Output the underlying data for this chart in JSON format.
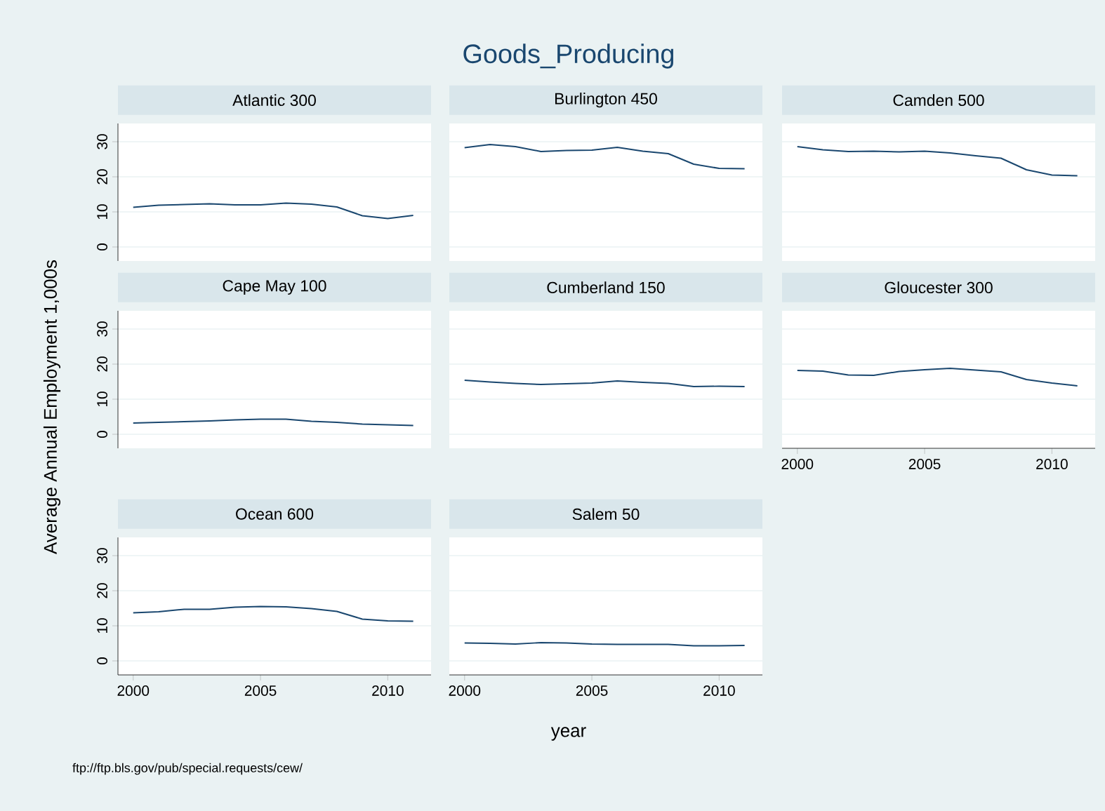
{
  "chart_data": [
    {
      "type": "other",
      "title": "Goods_Producing",
      "xlabel": "year",
      "ylabel": "Average Annual Employment 1,000s",
      "annotations": [
        "ftp://ftp.bls.gov/pub/special.requests/cew/"
      ]
    },
    {
      "type": "line",
      "title": "Atlantic 300",
      "x": [
        2000,
        2001,
        2002,
        2003,
        2004,
        2005,
        2006,
        2007,
        2008,
        2009,
        2010,
        2011
      ],
      "values": [
        11.3,
        11.9,
        12.1,
        12.3,
        12.0,
        12.0,
        12.5,
        12.2,
        11.4,
        8.9,
        8.1,
        9.0
      ],
      "color": "#1a476f",
      "xlim": [
        1999.4,
        2011.7
      ],
      "ylim": [
        -4,
        35.2
      ],
      "xticks": [
        2000,
        2005,
        2010
      ],
      "yticks": [
        0,
        10,
        20,
        30
      ],
      "grid": "y",
      "tick_labels": "y"
    },
    {
      "type": "line",
      "title": "Burlington 450",
      "x": [
        2000,
        2001,
        2002,
        2003,
        2004,
        2005,
        2006,
        2007,
        2008,
        2009,
        2010,
        2011
      ],
      "values": [
        28.3,
        29.2,
        28.6,
        27.2,
        27.5,
        27.6,
        28.4,
        27.3,
        26.6,
        23.6,
        22.4,
        22.3
      ],
      "color": "#1a476f",
      "xlim": [
        1999.4,
        2011.7
      ],
      "ylim": [
        -4,
        35.2
      ],
      "xticks": [
        2000,
        2005,
        2010
      ],
      "yticks": [
        0,
        10,
        20,
        30
      ],
      "grid": "y",
      "tick_labels": false
    },
    {
      "type": "line",
      "title": "Camden 500",
      "x": [
        2000,
        2001,
        2002,
        2003,
        2004,
        2005,
        2006,
        2007,
        2008,
        2009,
        2010,
        2011
      ],
      "values": [
        28.6,
        27.7,
        27.2,
        27.3,
        27.1,
        27.3,
        26.8,
        26.0,
        25.3,
        22.0,
        20.5,
        20.3
      ],
      "color": "#1a476f",
      "xlim": [
        1999.4,
        2011.7
      ],
      "ylim": [
        -4,
        35.2
      ],
      "xticks": [
        2000,
        2005,
        2010
      ],
      "yticks": [
        0,
        10,
        20,
        30
      ],
      "grid": "y",
      "tick_labels": false
    },
    {
      "type": "line",
      "title": "Cape May 100",
      "x": [
        2000,
        2001,
        2002,
        2003,
        2004,
        2005,
        2006,
        2007,
        2008,
        2009,
        2010,
        2011
      ],
      "values": [
        3.2,
        3.4,
        3.6,
        3.8,
        4.1,
        4.3,
        4.3,
        3.7,
        3.4,
        2.9,
        2.7,
        2.5
      ],
      "color": "#1a476f",
      "xlim": [
        1999.4,
        2011.7
      ],
      "ylim": [
        -4,
        35.2
      ],
      "xticks": [
        2000,
        2005,
        2010
      ],
      "yticks": [
        0,
        10,
        20,
        30
      ],
      "grid": "y",
      "tick_labels": "y"
    },
    {
      "type": "line",
      "title": "Cumberland 150",
      "x": [
        2000,
        2001,
        2002,
        2003,
        2004,
        2005,
        2006,
        2007,
        2008,
        2009,
        2010,
        2011
      ],
      "values": [
        15.4,
        14.9,
        14.5,
        14.2,
        14.4,
        14.6,
        15.2,
        14.8,
        14.5,
        13.6,
        13.7,
        13.6
      ],
      "color": "#1a476f",
      "xlim": [
        1999.4,
        2011.7
      ],
      "ylim": [
        -4,
        35.2
      ],
      "xticks": [
        2000,
        2005,
        2010
      ],
      "yticks": [
        0,
        10,
        20,
        30
      ],
      "grid": "y",
      "tick_labels": false
    },
    {
      "type": "line",
      "title": "Gloucester 300",
      "x": [
        2000,
        2001,
        2002,
        2003,
        2004,
        2005,
        2006,
        2007,
        2008,
        2009,
        2010,
        2011
      ],
      "values": [
        18.2,
        18.0,
        16.9,
        16.8,
        17.9,
        18.4,
        18.8,
        18.3,
        17.8,
        15.6,
        14.6,
        13.8
      ],
      "color": "#1a476f",
      "xlim": [
        1999.4,
        2011.7
      ],
      "ylim": [
        -4,
        35.2
      ],
      "xticks": [
        2000,
        2005,
        2010
      ],
      "yticks": [
        0,
        10,
        20,
        30
      ],
      "grid": "y",
      "tick_labels": "x"
    },
    {
      "type": "line",
      "title": "Ocean 600",
      "x": [
        2000,
        2001,
        2002,
        2003,
        2004,
        2005,
        2006,
        2007,
        2008,
        2009,
        2010,
        2011
      ],
      "values": [
        13.7,
        14.0,
        14.7,
        14.7,
        15.3,
        15.5,
        15.4,
        14.9,
        14.1,
        11.9,
        11.4,
        11.3
      ],
      "color": "#1a476f",
      "xlim": [
        1999.4,
        2011.7
      ],
      "ylim": [
        -4,
        35.2
      ],
      "xticks": [
        2000,
        2005,
        2010
      ],
      "yticks": [
        0,
        10,
        20,
        30
      ],
      "grid": "y"
    },
    {
      "type": "line",
      "title": "Salem 50",
      "x": [
        2000,
        2001,
        2002,
        2003,
        2004,
        2005,
        2006,
        2007,
        2008,
        2009,
        2010,
        2011
      ],
      "values": [
        5.1,
        5.0,
        4.8,
        5.2,
        5.1,
        4.8,
        4.7,
        4.7,
        4.7,
        4.3,
        4.3,
        4.4
      ],
      "color": "#1a476f",
      "xlim": [
        1999.4,
        2011.7
      ],
      "ylim": [
        -4,
        35.2
      ],
      "xticks": [
        2000,
        2005,
        2010
      ],
      "yticks": [
        0,
        10,
        20,
        30
      ],
      "grid": "y",
      "tick_labels": "x"
    }
  ]
}
